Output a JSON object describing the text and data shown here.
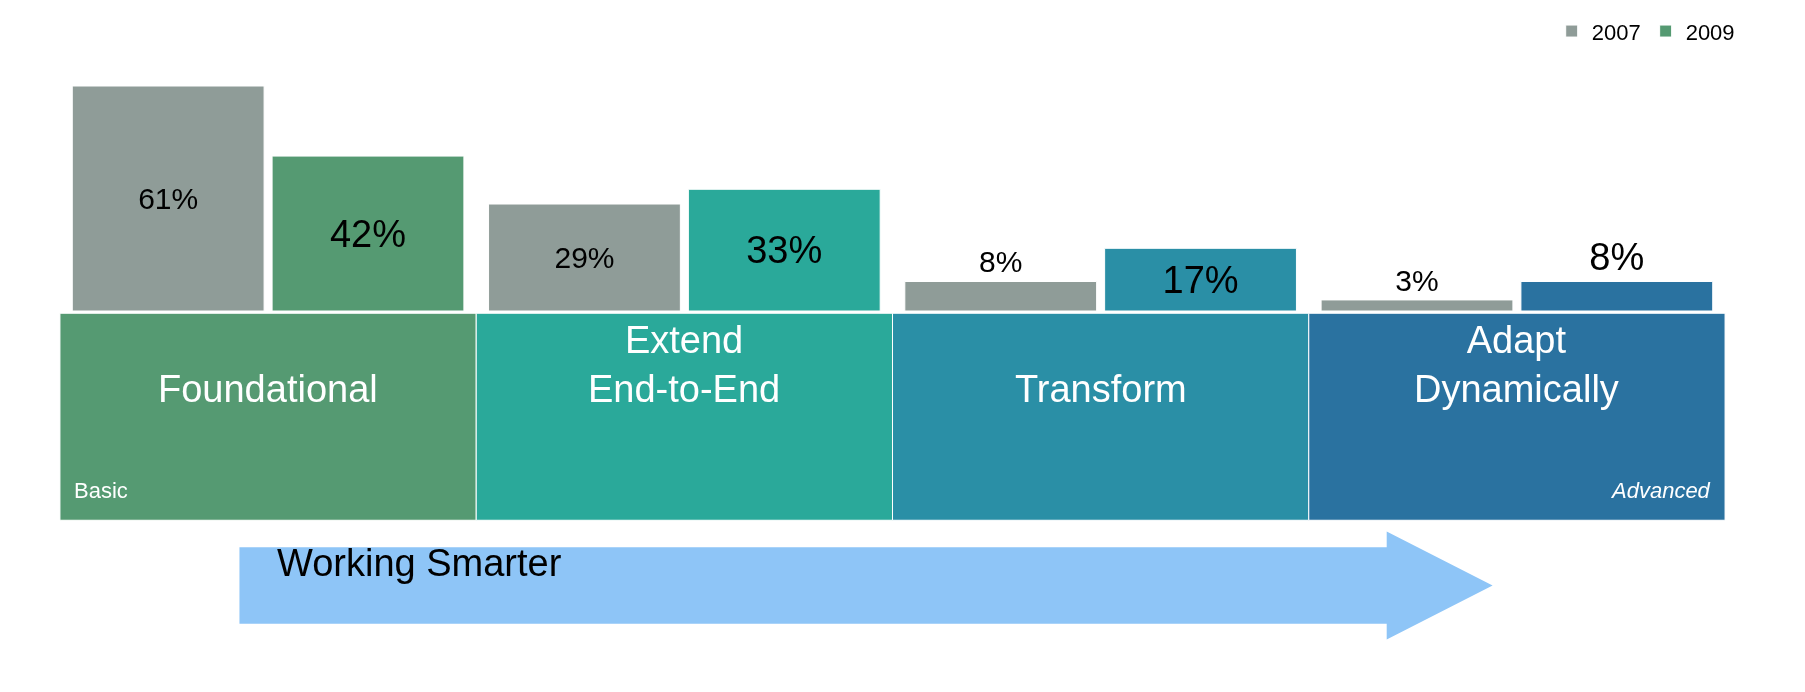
{
  "chart_data": {
    "type": "bar",
    "categories": [
      "Foundational",
      "Extend End-to-End",
      "Transform",
      "Adapt Dynamically"
    ],
    "series": [
      {
        "name": "2007",
        "color": "#8f9c98",
        "values": [
          61,
          29,
          8,
          3
        ],
        "value_labels": [
          "61%",
          "29%",
          "8%",
          "3%"
        ]
      },
      {
        "name": "2009",
        "colors": [
          "#559a72",
          "#2aa99a",
          "#2a8fa6",
          "#2a72a0"
        ],
        "values": [
          42,
          33,
          17,
          8
        ],
        "value_labels": [
          "42%",
          "33%",
          "17%",
          "8%"
        ]
      }
    ],
    "legend": "top right",
    "annotations": [
      "Basic",
      "Advanced",
      "Working Smarter"
    ]
  }
}
